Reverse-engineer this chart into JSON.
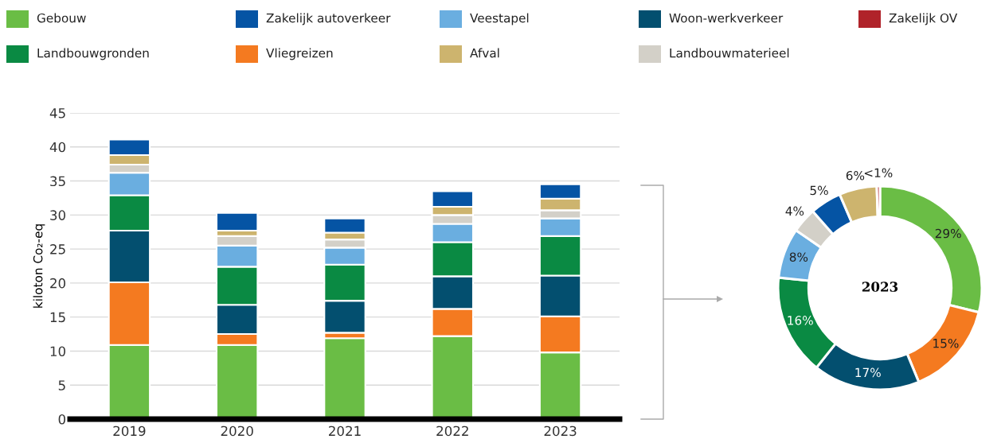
{
  "chart_data": [
    {
      "type": "bar",
      "stacked": true,
      "ylabel": "kiloton Co₂-eq",
      "categories": [
        "2019",
        "2020",
        "2021",
        "2022",
        "2023"
      ],
      "ylim": [
        0,
        45
      ],
      "yticks": [
        0,
        5,
        10,
        15,
        20,
        25,
        30,
        35,
        40,
        45
      ],
      "grid": "y",
      "legend": "top",
      "series": [
        {
          "name": "Gebouw",
          "color": "#6abd45",
          "values": [
            10.9,
            10.9,
            11.9,
            12.2,
            9.8
          ]
        },
        {
          "name": "Vliegreizen",
          "color": "#f47a20",
          "values": [
            9.2,
            1.6,
            0.8,
            4.0,
            5.3
          ]
        },
        {
          "name": "Woon-werkverkeer",
          "color": "#034f6f",
          "values": [
            7.6,
            4.3,
            4.7,
            4.8,
            6.0
          ]
        },
        {
          "name": "Landbouwgronden",
          "color": "#0a8a43",
          "values": [
            5.2,
            5.6,
            5.3,
            5.0,
            5.8
          ]
        },
        {
          "name": "Veestapel",
          "color": "#6aaee0",
          "values": [
            3.3,
            3.1,
            2.5,
            2.7,
            2.6
          ]
        },
        {
          "name": "Landbouwmaterieel",
          "color": "#d3d0c8",
          "values": [
            1.2,
            1.4,
            1.2,
            1.3,
            1.2
          ]
        },
        {
          "name": "Afval",
          "color": "#cdb46e",
          "values": [
            1.4,
            0.8,
            1.0,
            1.2,
            1.7
          ]
        },
        {
          "name": "Zakelijk OV",
          "color": "#b0232a",
          "values": [
            null,
            null,
            null,
            null,
            null
          ]
        },
        {
          "name": "Zakelijk autoverkeer",
          "color": "#0554a4",
          "values": [
            2.3,
            2.6,
            2.1,
            2.3,
            2.1
          ]
        }
      ]
    },
    {
      "type": "donut",
      "title": "2023",
      "categories": [
        null,
        null,
        null,
        null,
        null,
        null,
        null,
        null,
        null
      ],
      "values": [
        29,
        15,
        17,
        16,
        8,
        4,
        5,
        6,
        0.5
      ],
      "value_labels": [
        "29%",
        "15%",
        "17%",
        "16%",
        "8%",
        "4%",
        "5%",
        "6%",
        "<1%"
      ],
      "colors": [
        "#6abd45",
        "#f47a20",
        "#034f6f",
        "#0a8a43",
        "#6aaee0",
        "#d3d0c8",
        "#0554a4",
        "#cdb46e",
        "#b0232a"
      ]
    }
  ]
}
